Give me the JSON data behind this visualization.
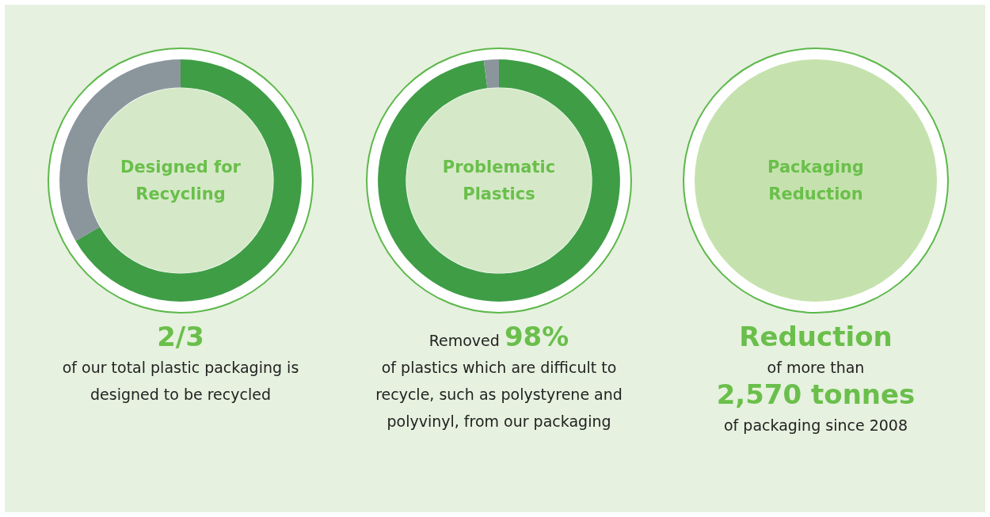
{
  "chart_data": [
    {
      "type": "donut",
      "title": "Designed for Recycling",
      "categories": [
        null,
        null
      ],
      "values": [
        66.7,
        33.3
      ],
      "colors": [
        "#3f9d46",
        "#8a969c"
      ],
      "annotations": [
        "2/3",
        "of our total plastic packaging is designed to be recycled"
      ]
    },
    {
      "type": "donut",
      "title": "Problematic Plastics",
      "categories": [
        null,
        null
      ],
      "values": [
        98,
        2
      ],
      "colors": [
        "#3f9d46",
        "#8a969c"
      ],
      "annotations": [
        "Removed",
        "98%",
        "of plastics which are difficult to recycle, such as polystyrene and polyvinyl, from our packaging"
      ]
    },
    {
      "type": "other",
      "title": "Packaging Reduction",
      "annotations": [
        "Reduction",
        "of more than",
        "2,570 tonnes",
        "of packaging since 2008"
      ]
    }
  ]
}
